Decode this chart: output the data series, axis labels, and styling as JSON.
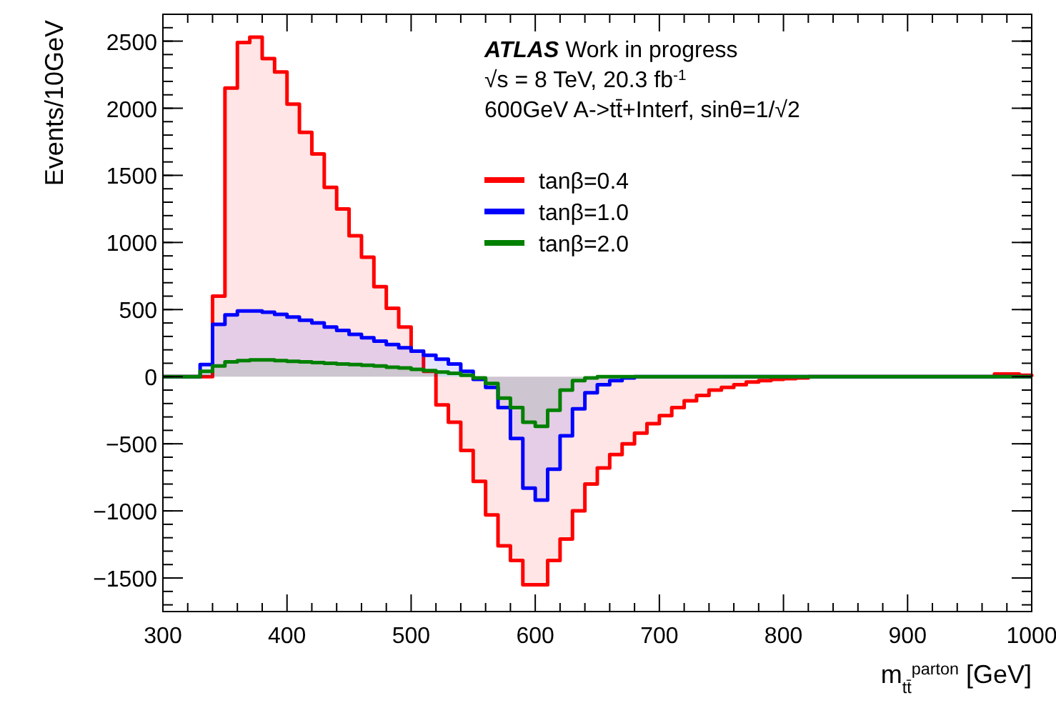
{
  "chart_data": {
    "type": "histogram",
    "xlabel": "m$_{tt̄}$$^{parton}$ [GeV]",
    "ylabel": "Events/10GeV",
    "annotations": [
      "ATLAS Work in progress",
      "√s = 8 TeV, 20.3 fb$^{-1}$",
      "600GeV A->tt̄+Interf, sinθ=1/√2"
    ],
    "bins": [
      300,
      310,
      320,
      330,
      340,
      350,
      360,
      370,
      380,
      390,
      400,
      410,
      420,
      430,
      440,
      450,
      460,
      470,
      480,
      490,
      500,
      510,
      520,
      530,
      540,
      550,
      560,
      570,
      580,
      590,
      600,
      610,
      620,
      630,
      640,
      650,
      660,
      670,
      680,
      690,
      700,
      710,
      720,
      730,
      740,
      750,
      760,
      770,
      780,
      790,
      800,
      810,
      820,
      830,
      840,
      850,
      860,
      870,
      880,
      890,
      900,
      910,
      920,
      930,
      940,
      950,
      960,
      970,
      980,
      990,
      1000
    ],
    "series": [
      {
        "name": "tanβ=0.4",
        "color": "#ff0000",
        "values": [
          0,
          0,
          0,
          0,
          600,
          2150,
          2490,
          2530,
          2370,
          2270,
          2030,
          1820,
          1660,
          1410,
          1250,
          1050,
          890,
          670,
          510,
          370,
          190,
          40,
          -210,
          -340,
          -550,
          -780,
          -1030,
          -1260,
          -1370,
          -1550,
          -1550,
          -1370,
          -1210,
          -1000,
          -800,
          -680,
          -580,
          -500,
          -420,
          -350,
          -290,
          -230,
          -180,
          -140,
          -100,
          -80,
          -60,
          -40,
          -30,
          -20,
          -15,
          -10,
          0,
          0,
          0,
          0,
          0,
          0,
          0,
          0,
          0,
          0,
          0,
          0,
          0,
          0,
          0,
          20,
          20,
          10
        ]
      },
      {
        "name": "tanβ=1.0",
        "color": "#0000ff",
        "values": [
          0,
          0,
          0,
          90,
          390,
          460,
          490,
          490,
          480,
          465,
          445,
          420,
          400,
          370,
          345,
          315,
          290,
          265,
          240,
          215,
          190,
          160,
          130,
          95,
          40,
          -20,
          -80,
          -230,
          -460,
          -830,
          -920,
          -690,
          -440,
          -240,
          -120,
          -60,
          -30,
          -10,
          0,
          0,
          0,
          0,
          0,
          0,
          0,
          0,
          0,
          0,
          0,
          0,
          0,
          0,
          0,
          0,
          0,
          0,
          0,
          0,
          0,
          0,
          0,
          0,
          0,
          0,
          0,
          0,
          0,
          0,
          0,
          0
        ]
      },
      {
        "name": "tanβ=2.0",
        "color": "#008000",
        "values": [
          0,
          0,
          0,
          40,
          80,
          110,
          120,
          125,
          125,
          120,
          115,
          110,
          105,
          100,
          95,
          90,
          85,
          80,
          70,
          65,
          55,
          45,
          35,
          25,
          10,
          -10,
          -50,
          -160,
          -230,
          -340,
          -370,
          -250,
          -100,
          -30,
          -10,
          0,
          0,
          0,
          0,
          0,
          0,
          0,
          0,
          0,
          0,
          0,
          0,
          0,
          0,
          0,
          0,
          0,
          0,
          0,
          0,
          0,
          0,
          0,
          0,
          0,
          0,
          0,
          0,
          0,
          0,
          0,
          0,
          0,
          0,
          0
        ]
      }
    ],
    "xlim": [
      300,
      1000
    ],
    "xticks": [
      300,
      400,
      500,
      600,
      700,
      800,
      900,
      1000
    ],
    "ylim": [
      -1750,
      2700
    ],
    "yticks": [
      -1500,
      -1000,
      -500,
      0,
      500,
      1000,
      1500,
      2000,
      2500
    ],
    "legend": "top right"
  }
}
